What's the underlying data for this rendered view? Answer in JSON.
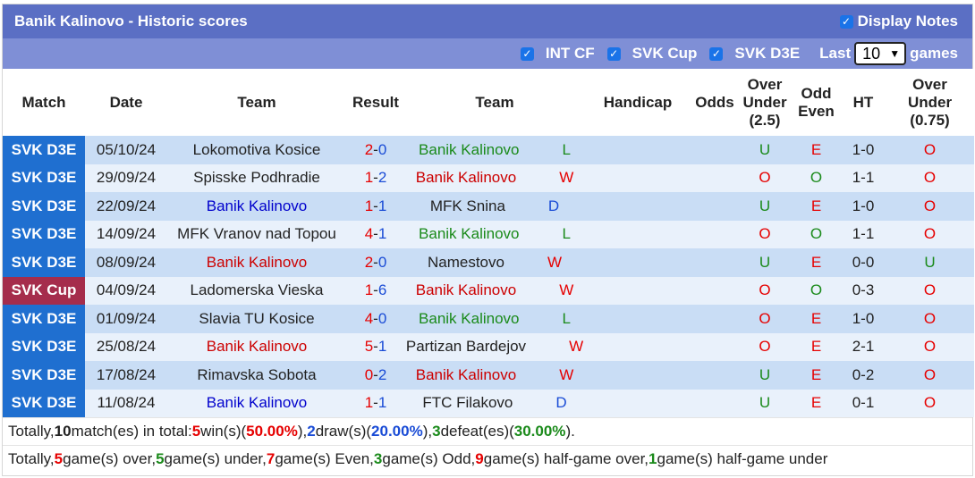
{
  "header": {
    "title": "Banik Kalinovo - Historic scores",
    "display_notes_label": "Display Notes"
  },
  "filters": {
    "items": [
      {
        "label": "INT CF"
      },
      {
        "label": "SVK Cup"
      },
      {
        "label": "SVK D3E"
      }
    ],
    "last_label": "Last",
    "last_value": "10",
    "games_label": "games"
  },
  "columns": {
    "match": "Match",
    "date": "Date",
    "team1": "Team",
    "result": "Result",
    "team2": "Team",
    "handicap": "Handicap",
    "odds": "Odds",
    "ou_1": "Over",
    "ou_2": "Under",
    "ou_3": "(2.5)",
    "oe_1": "Odd",
    "oe_2": "Even",
    "ht": "HT",
    "hou_1": "Over",
    "hou_2": "Under",
    "hou_3": "(0.75)"
  },
  "rows": [
    {
      "league": "SVK D3E",
      "date": "05/10/24",
      "home": "Lokomotiva Kosice",
      "hs": "2",
      "sep": "-",
      "as": "0",
      "away": "Banik Kalinovo",
      "res": "L",
      "ou": "U",
      "oe": "E",
      "ht": "1-0",
      "hou": "O"
    },
    {
      "league": "SVK D3E",
      "date": "29/09/24",
      "home": "Spisske Podhradie",
      "hs": "1",
      "sep": "-",
      "as": "2",
      "away": "Banik Kalinovo",
      "res": "W",
      "ou": "O",
      "oe": "O",
      "ht": "1-1",
      "hou": "O"
    },
    {
      "league": "SVK D3E",
      "date": "22/09/24",
      "home": "Banik Kalinovo",
      "hs": "1",
      "sep": "-",
      "as": "1",
      "away": "MFK Snina",
      "res": "D",
      "ou": "U",
      "oe": "E",
      "ht": "1-0",
      "hou": "O"
    },
    {
      "league": "SVK D3E",
      "date": "14/09/24",
      "home": "MFK Vranov nad Topou",
      "hs": "4",
      "sep": "-",
      "as": "1",
      "away": "Banik Kalinovo",
      "res": "L",
      "ou": "O",
      "oe": "O",
      "ht": "1-1",
      "hou": "O"
    },
    {
      "league": "SVK D3E",
      "date": "08/09/24",
      "home": "Banik Kalinovo",
      "hs": "2",
      "sep": "-",
      "as": "0",
      "away": "Namestovo",
      "res": "W",
      "ou": "U",
      "oe": "E",
      "ht": "0-0",
      "hou": "U"
    },
    {
      "league": "SVK Cup",
      "date": "04/09/24",
      "home": "Ladomerska Vieska",
      "hs": "1",
      "sep": "-",
      "as": "6",
      "away": "Banik Kalinovo",
      "res": "W",
      "ou": "O",
      "oe": "O",
      "ht": "0-3",
      "hou": "O"
    },
    {
      "league": "SVK D3E",
      "date": "01/09/24",
      "home": "Slavia TU Kosice",
      "hs": "4",
      "sep": "-",
      "as": "0",
      "away": "Banik Kalinovo",
      "res": "L",
      "ou": "O",
      "oe": "E",
      "ht": "1-0",
      "hou": "O"
    },
    {
      "league": "SVK D3E",
      "date": "25/08/24",
      "home": "Banik Kalinovo",
      "hs": "5",
      "sep": "-",
      "as": "1",
      "away": "Partizan Bardejov",
      "res": "W",
      "ou": "O",
      "oe": "E",
      "ht": "2-1",
      "hou": "O"
    },
    {
      "league": "SVK D3E",
      "date": "17/08/24",
      "home": "Rimavska Sobota",
      "hs": "0",
      "sep": "-",
      "as": "2",
      "away": "Banik Kalinovo",
      "res": "W",
      "ou": "U",
      "oe": "E",
      "ht": "0-2",
      "hou": "O"
    },
    {
      "league": "SVK D3E",
      "date": "11/08/24",
      "home": "Banik Kalinovo",
      "hs": "1",
      "sep": "-",
      "as": "1",
      "away": "FTC Filakovo",
      "res": "D",
      "ou": "U",
      "oe": "E",
      "ht": "0-1",
      "hou": "O"
    }
  ],
  "summary1": {
    "t1": "Totally, ",
    "n_matches": "10",
    "t2": " match(es) in total: ",
    "wins": "5",
    "t3": " win(s)(",
    "win_pct": "50.00%",
    "t4": "), ",
    "draws": "2",
    "t5": " draw(s)(",
    "draw_pct": "20.00%",
    "t6": "), ",
    "defeats": "3",
    "t7": " defeat(es)(",
    "defeat_pct": "30.00%",
    "t8": ")."
  },
  "summary2": {
    "t1": "Totally, ",
    "over": "5",
    "t2": " game(s) over, ",
    "under": "5",
    "t3": " game(s) under, ",
    "even": "7",
    "t4": " game(s) Even, ",
    "odd": "3",
    "t5": " game(s) Odd, ",
    "half_over": "9",
    "t6": " game(s) half-game over, ",
    "half_under": "1",
    "t7": " game(s) half-game under"
  }
}
